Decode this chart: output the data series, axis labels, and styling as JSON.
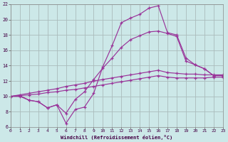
{
  "bg_color": "#cce8e8",
  "grid_color": "#aabbbb",
  "line_color": "#993399",
  "marker": "+",
  "xlim": [
    0,
    23
  ],
  "ylim": [
    6,
    22
  ],
  "xlabel": "Windchill (Refroidissement éolien,°C)",
  "yticks": [
    6,
    8,
    10,
    12,
    14,
    16,
    18,
    20,
    22
  ],
  "xticks": [
    0,
    1,
    2,
    3,
    4,
    5,
    6,
    7,
    8,
    9,
    10,
    11,
    12,
    13,
    14,
    15,
    16,
    17,
    18,
    19,
    20,
    21,
    22,
    23
  ],
  "curves": [
    [
      10.0,
      10.1,
      9.5,
      9.3,
      8.5,
      8.9,
      6.5,
      8.3,
      8.6,
      10.4,
      13.9,
      16.6,
      19.6,
      20.2,
      20.7,
      21.5,
      21.8,
      18.3,
      18.0,
      15.0,
      14.1,
      13.6,
      12.7,
      12.7
    ],
    [
      10.0,
      10.0,
      9.5,
      9.3,
      8.5,
      8.9,
      7.8,
      9.6,
      10.6,
      12.2,
      13.7,
      15.0,
      16.4,
      17.4,
      17.9,
      18.4,
      18.5,
      18.2,
      17.8,
      14.6,
      14.1,
      13.6,
      12.7,
      12.7
    ],
    [
      10.0,
      10.2,
      10.4,
      10.6,
      10.8,
      11.0,
      11.3,
      11.5,
      11.7,
      12.0,
      12.2,
      12.4,
      12.6,
      12.8,
      13.0,
      13.2,
      13.4,
      13.1,
      13.0,
      12.9,
      12.9,
      12.8,
      12.8,
      12.8
    ],
    [
      10.0,
      10.1,
      10.2,
      10.3,
      10.5,
      10.6,
      10.8,
      10.9,
      11.1,
      11.3,
      11.5,
      11.7,
      11.9,
      12.1,
      12.3,
      12.5,
      12.7,
      12.5,
      12.4,
      12.4,
      12.4,
      12.4,
      12.5,
      12.5
    ]
  ]
}
